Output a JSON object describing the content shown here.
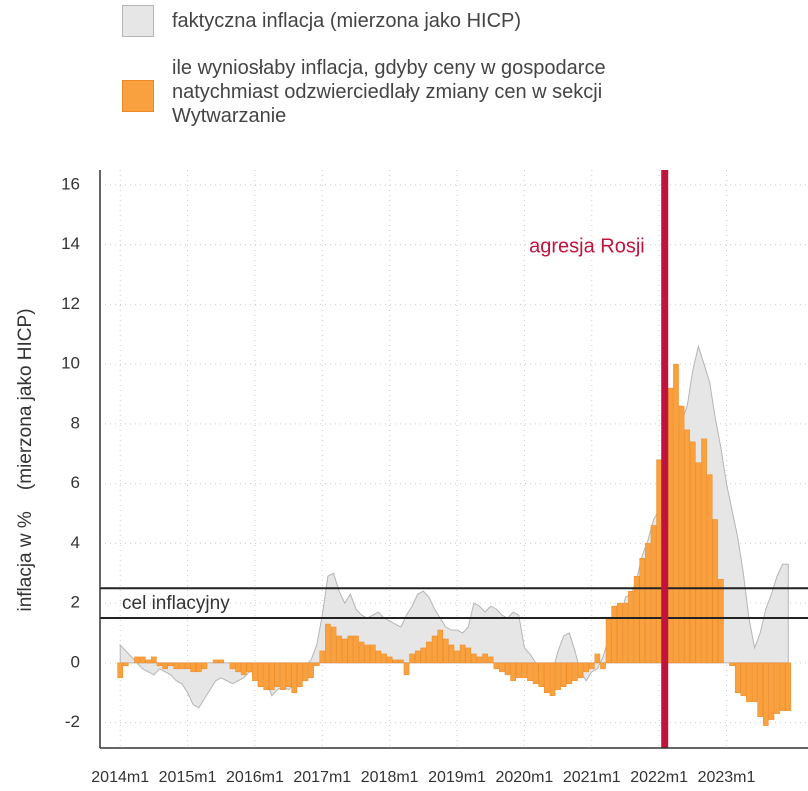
{
  "chart_data": {
    "type": "combo",
    "ylabel": "inflacja w %    (mierzona jako HICP)",
    "xlim": [
      2013.7,
      2024.21
    ],
    "ylim": [
      -2.85,
      16.5
    ],
    "yticks": [
      -2,
      0,
      2,
      4,
      6,
      8,
      10,
      12,
      14,
      16
    ],
    "xticks": [
      {
        "value": 2014,
        "label": "2014m1"
      },
      {
        "value": 2015,
        "label": "2015m1"
      },
      {
        "value": 2016,
        "label": "2016m1"
      },
      {
        "value": 2017,
        "label": "2017m1"
      },
      {
        "value": 2018,
        "label": "2018m1"
      },
      {
        "value": 2019,
        "label": "2019m1"
      },
      {
        "value": 2020,
        "label": "2020m1"
      },
      {
        "value": 2021,
        "label": "2021m1"
      },
      {
        "value": 2022,
        "label": "2022m1"
      },
      {
        "value": 2023,
        "label": "2023m1"
      }
    ],
    "grid": true,
    "target_lines": {
      "label": "cel inflacyjny",
      "values": [
        1.5,
        2.5
      ],
      "color": "#222"
    },
    "event": {
      "label": "agresja Rosji",
      "x": 2022.083,
      "color": "#c0143c"
    },
    "x": [
      2014,
      2014.083,
      2014.167,
      2014.25,
      2014.333,
      2014.417,
      2014.5,
      2014.583,
      2014.667,
      2014.75,
      2014.833,
      2014.917,
      2015,
      2015.083,
      2015.167,
      2015.25,
      2015.333,
      2015.417,
      2015.5,
      2015.583,
      2015.667,
      2015.75,
      2015.833,
      2015.917,
      2016,
      2016.083,
      2016.167,
      2016.25,
      2016.333,
      2016.417,
      2016.5,
      2016.583,
      2016.667,
      2016.75,
      2016.833,
      2016.917,
      2017,
      2017.083,
      2017.167,
      2017.25,
      2017.333,
      2017.417,
      2017.5,
      2017.583,
      2017.667,
      2017.75,
      2017.833,
      2017.917,
      2018,
      2018.083,
      2018.167,
      2018.25,
      2018.333,
      2018.417,
      2018.5,
      2018.583,
      2018.667,
      2018.75,
      2018.833,
      2018.917,
      2019,
      2019.083,
      2019.167,
      2019.25,
      2019.333,
      2019.417,
      2019.5,
      2019.583,
      2019.667,
      2019.75,
      2019.833,
      2019.917,
      2020,
      2020.083,
      2020.167,
      2020.25,
      2020.333,
      2020.417,
      2020.5,
      2020.583,
      2020.667,
      2020.75,
      2020.833,
      2020.917,
      2021,
      2021.083,
      2021.167,
      2021.25,
      2021.333,
      2021.417,
      2021.5,
      2021.583,
      2021.667,
      2021.75,
      2021.833,
      2021.917,
      2022,
      2022.083,
      2022.167,
      2022.25,
      2022.333,
      2022.417,
      2022.5,
      2022.583,
      2022.667,
      2022.75,
      2022.833,
      2022.917,
      2023,
      2023.083,
      2023.167,
      2023.25,
      2023.333,
      2023.417,
      2023.5,
      2023.583,
      2023.667,
      2023.75,
      2023.833,
      2023.917
    ],
    "series": [
      {
        "name": "faktyczna inflacja (mierzona jako HICP)",
        "type": "area",
        "color": "#e6e6e6",
        "edge": "#b5b5b5",
        "values": [
          0.6,
          0.4,
          0.2,
          0.0,
          -0.2,
          -0.3,
          -0.4,
          -0.2,
          -0.3,
          -0.4,
          -0.6,
          -0.7,
          -1.0,
          -1.4,
          -1.5,
          -1.2,
          -0.9,
          -0.6,
          -0.5,
          -0.6,
          -0.7,
          -0.6,
          -0.5,
          -0.3,
          -0.3,
          -0.4,
          -0.6,
          -1.1,
          -0.9,
          -0.8,
          -0.9,
          -0.7,
          -0.5,
          -0.1,
          0.1,
          0.6,
          1.6,
          2.9,
          3.0,
          2.4,
          2.0,
          2.3,
          1.8,
          1.6,
          1.5,
          1.6,
          1.7,
          1.5,
          1.4,
          1.3,
          1.2,
          1.6,
          1.9,
          2.3,
          2.4,
          2.2,
          1.8,
          1.5,
          1.2,
          1.1,
          1.1,
          1.0,
          1.2,
          2.0,
          1.9,
          1.7,
          1.9,
          1.8,
          1.6,
          1.5,
          1.7,
          1.6,
          0.5,
          0.3,
          0.0,
          -0.5,
          -0.4,
          -0.3,
          0.4,
          0.9,
          1.0,
          0.4,
          -0.3,
          -0.6,
          -0.3,
          -0.2,
          0.2,
          0.8,
          1.0,
          1.3,
          2.2,
          2.3,
          2.8,
          3.6,
          4.1,
          4.8,
          5.1,
          5.9,
          7.4,
          7.4,
          8.1,
          8.6,
          9.8,
          10.6,
          10.0,
          9.4,
          8.2,
          7.2,
          6.0,
          5.1,
          4.2,
          3.0,
          1.5,
          0.5,
          1.0,
          1.8,
          2.3,
          2.9,
          3.3,
          3.3
        ]
      },
      {
        "name": "ile wyniosłaby inflacja, gdyby ceny w gospodarce\nnatychmiast odzwierciedlały zmiany cen w sekcji\nWytwarzanie",
        "type": "bar",
        "color": "#f9a03f",
        "edge": "#ee8a25",
        "values": [
          -0.5,
          -0.1,
          0.0,
          0.2,
          0.2,
          0.1,
          0.2,
          -0.1,
          -0.2,
          -0.1,
          -0.2,
          -0.2,
          -0.2,
          -0.3,
          -0.3,
          -0.2,
          0.0,
          0.1,
          0.1,
          0.0,
          -0.2,
          -0.3,
          -0.4,
          -0.3,
          -0.6,
          -0.8,
          -0.9,
          -0.9,
          -0.8,
          -0.9,
          -0.8,
          -1.0,
          -0.8,
          -0.6,
          -0.5,
          -0.1,
          0.4,
          1.3,
          1.2,
          0.9,
          0.8,
          0.9,
          0.9,
          0.7,
          0.6,
          0.6,
          0.4,
          0.3,
          0.2,
          0.1,
          0.1,
          -0.4,
          0.3,
          0.4,
          0.5,
          0.7,
          0.9,
          1.1,
          0.8,
          0.6,
          0.4,
          0.6,
          0.5,
          0.3,
          0.2,
          0.3,
          0.2,
          -0.2,
          -0.3,
          -0.4,
          -0.6,
          -0.5,
          -0.5,
          -0.6,
          -0.7,
          -0.8,
          -1.0,
          -1.1,
          -0.9,
          -0.8,
          -0.7,
          -0.6,
          -0.5,
          -0.3,
          -0.2,
          0.3,
          -0.2,
          1.5,
          1.9,
          2.0,
          2.0,
          2.4,
          2.9,
          3.5,
          4.0,
          4.6,
          6.8,
          6.9,
          9.2,
          10.0,
          8.6,
          7.8,
          7.4,
          6.7,
          7.5,
          6.3,
          4.8,
          2.8,
          0.0,
          -0.1,
          -1.0,
          -1.1,
          -1.3,
          -1.3,
          -1.8,
          -2.1,
          -1.9,
          -1.7,
          -1.6,
          -1.6
        ]
      }
    ]
  }
}
